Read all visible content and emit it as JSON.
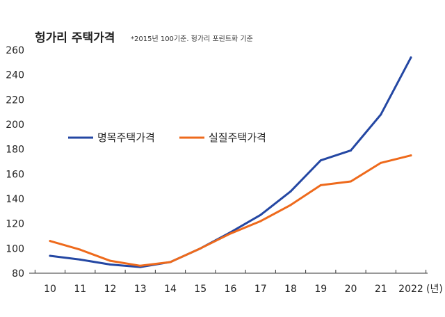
{
  "chart_data": {
    "type": "line",
    "title": "헝가리 주택가격",
    "subtitle": "*2015년 100기준. 헝가리 포린트화 기준",
    "x": [
      10,
      11,
      12,
      13,
      14,
      15,
      16,
      17,
      18,
      19,
      20,
      21,
      22
    ],
    "x_tick_labels": [
      "10",
      "11",
      "12",
      "13",
      "14",
      "15",
      "16",
      "17",
      "18",
      "19",
      "20",
      "21",
      "2022"
    ],
    "x_unit": "(년)",
    "y_ticks": [
      "80",
      "100",
      "120",
      "140",
      "160",
      "180",
      "200",
      "220",
      "240",
      "260"
    ],
    "ylim": [
      80,
      260
    ],
    "legend_position": "middle-left",
    "series": [
      {
        "name": "명목주택가격",
        "color": "#2447a3",
        "values": [
          94,
          91,
          87,
          85,
          89,
          100,
          113,
          127,
          146,
          171,
          179,
          208,
          254
        ]
      },
      {
        "name": "실질주택가격",
        "color": "#ee6a1c",
        "values": [
          106,
          99,
          90,
          86,
          89,
          100,
          112,
          122,
          135,
          151,
          154,
          169,
          175
        ]
      }
    ]
  }
}
